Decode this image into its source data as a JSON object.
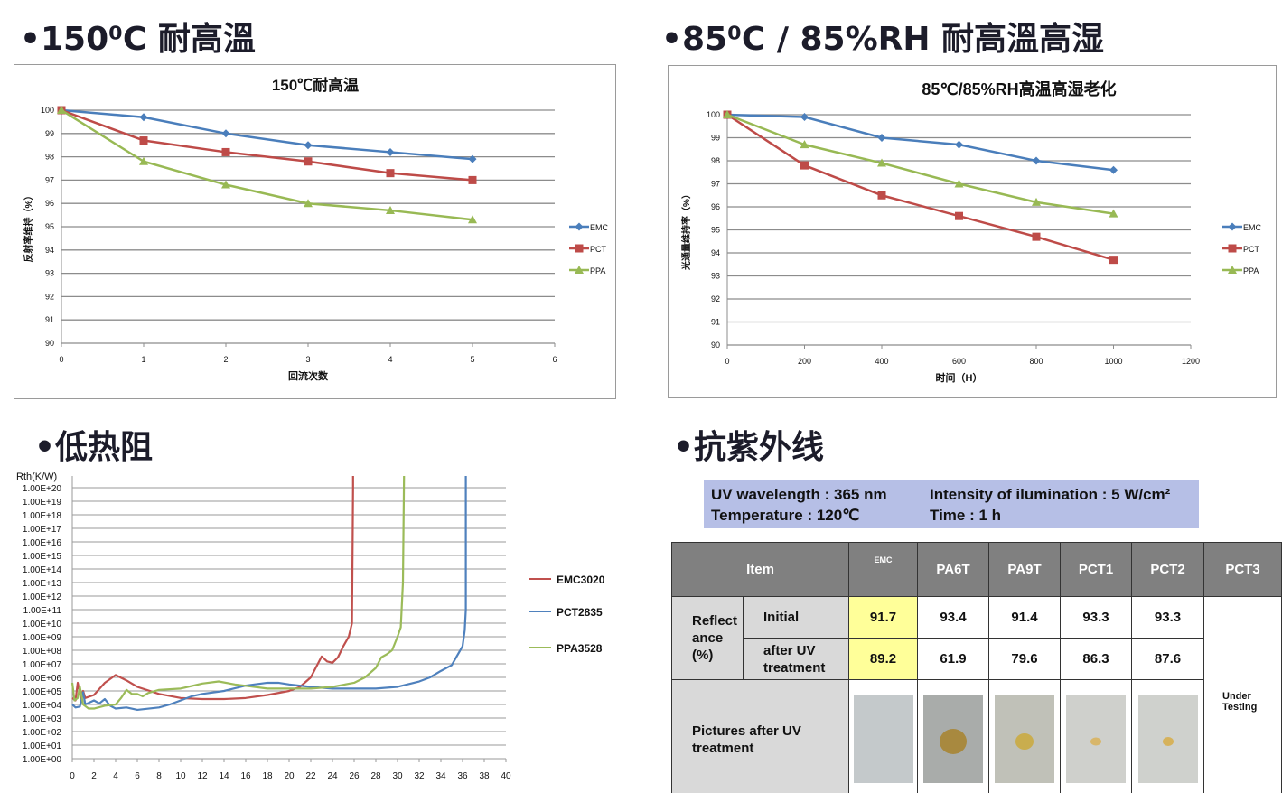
{
  "sections": {
    "high_temp": "•150⁰C 耐高溫",
    "humidity": "•85⁰C / 85%RH 耐高溫高湿",
    "thermal": "•低热阻",
    "uv": "•抗紫外线"
  },
  "colors": {
    "EMC": "#4a7ebb",
    "PCT": "#be4b48",
    "PPA": "#98b954"
  },
  "chart_data": [
    {
      "type": "line",
      "title": "150℃耐高温",
      "xlabel": "回流次数",
      "ylabel": "反射率维持（%）",
      "xlim": [
        0,
        6
      ],
      "ylim": [
        90,
        100
      ],
      "xticks": [
        0,
        1,
        2,
        3,
        4,
        5,
        6
      ],
      "yticks": [
        90,
        91,
        92,
        93,
        94,
        95,
        96,
        97,
        98,
        99,
        100
      ],
      "grid": "horizontal",
      "legend": "right",
      "x": [
        0,
        1,
        2,
        3,
        4,
        5
      ],
      "series": [
        {
          "name": "EMC",
          "marker": "diamond",
          "values": [
            100,
            99.7,
            99.0,
            98.5,
            98.2,
            97.9
          ]
        },
        {
          "name": "PCT",
          "marker": "square",
          "values": [
            100,
            98.7,
            98.2,
            97.8,
            97.3,
            97.0
          ]
        },
        {
          "name": "PPA",
          "marker": "triangle",
          "values": [
            100,
            97.8,
            96.8,
            96.0,
            95.7,
            95.3
          ]
        }
      ]
    },
    {
      "type": "line",
      "title": "85℃/85%RH高温高湿老化",
      "xlabel": "时间（H）",
      "ylabel": "光通量维持率（%）",
      "xlim": [
        0,
        1200
      ],
      "ylim": [
        90,
        100
      ],
      "xticks": [
        0,
        200,
        400,
        600,
        800,
        1000,
        1200
      ],
      "yticks": [
        90,
        91,
        92,
        93,
        94,
        95,
        96,
        97,
        98,
        99,
        100
      ],
      "grid": "horizontal",
      "legend": "right",
      "x": [
        0,
        200,
        400,
        600,
        800,
        1000
      ],
      "series": [
        {
          "name": "EMC",
          "marker": "diamond",
          "values": [
            100,
            99.9,
            99.0,
            98.7,
            98.0,
            97.6
          ]
        },
        {
          "name": "PCT",
          "marker": "square",
          "values": [
            100,
            97.8,
            96.5,
            95.6,
            94.7,
            93.7
          ]
        },
        {
          "name": "PPA",
          "marker": "triangle",
          "values": [
            100,
            98.7,
            97.9,
            97.0,
            96.2,
            95.7
          ]
        }
      ]
    },
    {
      "type": "line",
      "ylabel": "Rth(K/W)",
      "yscale": "log",
      "xlim": [
        0,
        40
      ],
      "ylim": [
        1.0,
        1e+20
      ],
      "xticks": [
        0,
        2,
        4,
        6,
        8,
        10,
        12,
        14,
        16,
        18,
        20,
        22,
        24,
        26,
        28,
        30,
        32,
        34,
        36,
        38,
        40
      ],
      "yticks": [
        "1.00E+00",
        "1.00E+01",
        "1.00E+02",
        "1.00E+03",
        "1.00E+04",
        "1.00E+05",
        "1.00E+06",
        "1.00E+07",
        "1.00E+08",
        "1.00E+09",
        "1.00E+10",
        "1.00E+11",
        "1.00E+12",
        "1.00E+13",
        "1.00E+14",
        "1.00E+15",
        "1.00E+16",
        "1.00E+17",
        "1.00E+18",
        "1.00E+19",
        "1.00E+20"
      ],
      "grid": "horizontal",
      "legend": "right",
      "series": [
        {
          "name": "EMC3020",
          "color": "#c0504d",
          "points": [
            [
              0,
              30000.0
            ],
            [
              0.3,
              20000.0
            ],
            [
              0.5,
              400000.0
            ],
            [
              0.8,
              30000.0
            ],
            [
              1,
              100000.0
            ],
            [
              1.2,
              30000.0
            ],
            [
              2,
              50000.0
            ],
            [
              3,
              400000.0
            ],
            [
              4,
              1500000.0
            ],
            [
              5,
              600000.0
            ],
            [
              6,
              200000.0
            ],
            [
              8,
              60000.0
            ],
            [
              10,
              30000.0
            ],
            [
              12,
              25000.0
            ],
            [
              14,
              25000.0
            ],
            [
              16,
              30000.0
            ],
            [
              18,
              50000.0
            ],
            [
              20,
              100000.0
            ],
            [
              21,
              200000.0
            ],
            [
              22,
              1000000.0
            ],
            [
              23,
              35000000.0
            ],
            [
              23.5,
              15000000.0
            ],
            [
              24,
              12000000.0
            ],
            [
              24.5,
              30000000.0
            ],
            [
              25,
              200000000.0
            ],
            [
              25.5,
              1000000000.0
            ],
            [
              25.8,
              10000000000.0
            ],
            [
              25.9,
              1e+20
            ],
            [
              25.9,
              1e+21
            ]
          ]
        },
        {
          "name": "PCT2835",
          "color": "#4f81bd",
          "points": [
            [
              0,
              10000.0
            ],
            [
              0.3,
              6000.0
            ],
            [
              0.7,
              7000.0
            ],
            [
              1,
              80000.0
            ],
            [
              1.2,
              10000.0
            ],
            [
              2,
              20000.0
            ],
            [
              2.5,
              12000.0
            ],
            [
              3,
              25000.0
            ],
            [
              3.5,
              8000.0
            ],
            [
              4,
              5000.0
            ],
            [
              5,
              6000.0
            ],
            [
              6,
              4000.0
            ],
            [
              8,
              6000.0
            ],
            [
              9,
              10000.0
            ],
            [
              10,
              20000.0
            ],
            [
              11,
              40000.0
            ],
            [
              12,
              60000.0
            ],
            [
              14,
              100000.0
            ],
            [
              16,
              250000.0
            ],
            [
              18,
              400000.0
            ],
            [
              19,
              400000.0
            ],
            [
              20,
              300000.0
            ],
            [
              22,
              200000.0
            ],
            [
              24,
              150000.0
            ],
            [
              28,
              150000.0
            ],
            [
              30,
              200000.0
            ],
            [
              32,
              500000.0
            ],
            [
              33,
              1000000.0
            ],
            [
              34,
              3000000.0
            ],
            [
              35,
              8000000.0
            ],
            [
              35.5,
              40000000.0
            ],
            [
              36,
              200000000.0
            ],
            [
              36.2,
              3000000000.0
            ],
            [
              36.3,
              100000000000.0
            ],
            [
              36.3,
              1e+21
            ]
          ]
        },
        {
          "name": "PPA3528",
          "color": "#9bbb59",
          "points": [
            [
              0,
              400000.0
            ],
            [
              0.2,
              20000.0
            ],
            [
              0.5,
              30000.0
            ],
            [
              0.7,
              200000.0
            ],
            [
              1,
              10000.0
            ],
            [
              1.5,
              5000.0
            ],
            [
              2,
              5000.0
            ],
            [
              3,
              8000.0
            ],
            [
              4,
              10000.0
            ],
            [
              4.5,
              30000.0
            ],
            [
              5,
              120000.0
            ],
            [
              5.5,
              60000.0
            ],
            [
              6,
              60000.0
            ],
            [
              6.5,
              40000.0
            ],
            [
              7,
              70000.0
            ],
            [
              8,
              120000.0
            ],
            [
              10,
              150000.0
            ],
            [
              12,
              350000.0
            ],
            [
              13.5,
              500000.0
            ],
            [
              15,
              300000.0
            ],
            [
              18,
              150000.0
            ],
            [
              20,
              150000.0
            ],
            [
              22,
              150000.0
            ],
            [
              24,
              200000.0
            ],
            [
              26,
              400000.0
            ],
            [
              27,
              1000000.0
            ],
            [
              28,
              5000000.0
            ],
            [
              28.5,
              30000000.0
            ],
            [
              29,
              50000000.0
            ],
            [
              29.5,
              100000000.0
            ],
            [
              30,
              1000000000.0
            ],
            [
              30.3,
              5000000000.0
            ],
            [
              30.5,
              10000000000000.0
            ],
            [
              30.6,
              1e+21
            ]
          ]
        }
      ]
    }
  ],
  "uv_conditions": {
    "wavelength": "UV wavelength : 365 nm",
    "temperature": "Temperature : 120℃",
    "intensity": "Intensity of ilumination : 5 W/cm²",
    "time": "Time : 1 h"
  },
  "uv_table": {
    "item": "Item",
    "columns": [
      "EMC",
      "PA6T",
      "PA9T",
      "PCT1",
      "PCT2",
      "PCT3"
    ],
    "reflectance_label": "Reflect ance (%)",
    "initial_label": "Initial",
    "after_label": "after UV treatment",
    "initial": [
      "91.7",
      "93.4",
      "91.4",
      "93.3",
      "93.3"
    ],
    "after": [
      "89.2",
      "61.9",
      "79.6",
      "86.3",
      "87.6"
    ],
    "pictures_label": "Pictures after UV treatment",
    "pct3_status": "Under Testing",
    "highlight_color": "#ffff99"
  }
}
